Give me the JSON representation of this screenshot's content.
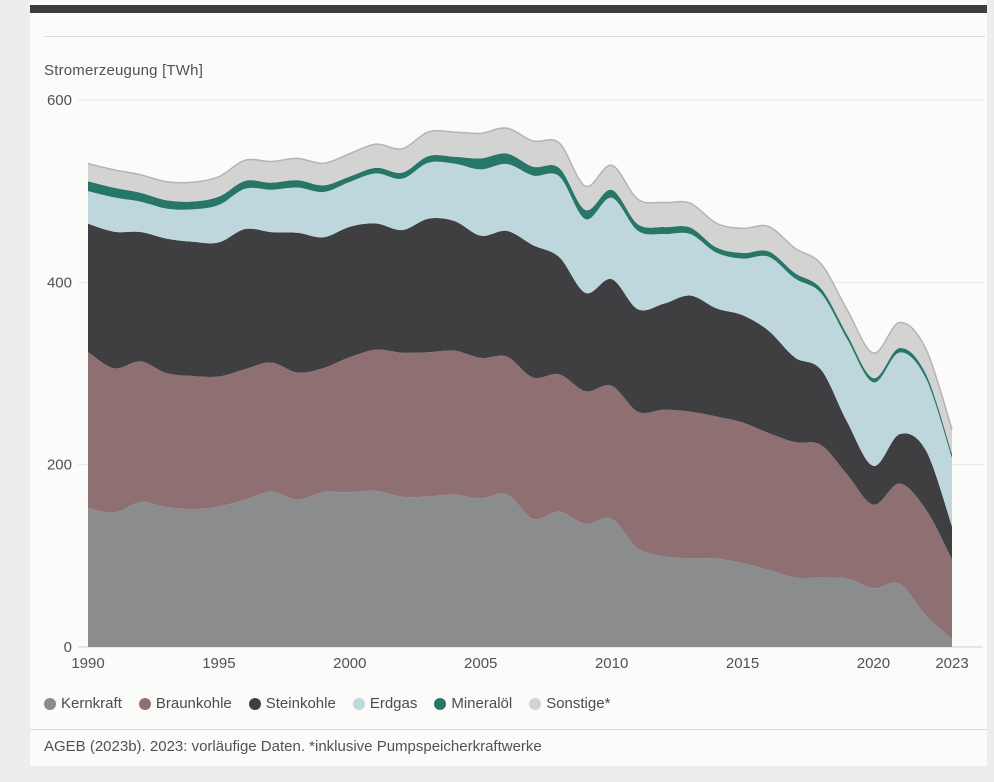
{
  "chart": {
    "y_axis_title": "Stromerzeugung [TWh]"
  },
  "chart_data": {
    "type": "area",
    "stacked": true,
    "title": "Stromerzeugung [TWh]",
    "ylabel": "TWh",
    "xlabel": "",
    "ylim": [
      0,
      600
    ],
    "yticks": [
      0,
      200,
      400,
      600
    ],
    "xticks": [
      1990,
      1995,
      2000,
      2005,
      2010,
      2015,
      2020,
      2023
    ],
    "grid": "horizontal",
    "legend_position": "bottom",
    "x": [
      1990,
      1991,
      1992,
      1993,
      1994,
      1995,
      1996,
      1997,
      1998,
      1999,
      2000,
      2001,
      2002,
      2003,
      2004,
      2005,
      2006,
      2007,
      2008,
      2009,
      2010,
      2011,
      2012,
      2013,
      2014,
      2015,
      2016,
      2017,
      2018,
      2019,
      2020,
      2021,
      2022,
      2023
    ],
    "series": [
      {
        "key": "kernkraft",
        "name": "Kernkraft",
        "color": "#8b8c8e",
        "values": [
          152.5,
          147.4,
          158.8,
          153.5,
          151.2,
          154.1,
          161.6,
          170.3,
          161.6,
          170.0,
          169.6,
          171.3,
          164.8,
          165.1,
          167.1,
          163.0,
          167.4,
          140.5,
          148.5,
          134.9,
          140.6,
          108.0,
          99.5,
          97.3,
          97.1,
          91.8,
          84.6,
          76.3,
          76.0,
          75.1,
          64.4,
          69.1,
          34.7,
          8.8
        ]
      },
      {
        "key": "braunkohle",
        "name": "Braunkohle",
        "color": "#8e7072",
        "values": [
          170.9,
          158.3,
          154.5,
          146.9,
          146.1,
          142.6,
          143.2,
          141.7,
          139.4,
          136.0,
          148.3,
          154.8,
          158.0,
          158.2,
          158.0,
          154.1,
          151.1,
          155.1,
          150.6,
          145.6,
          145.9,
          150.1,
          160.7,
          160.9,
          155.8,
          154.5,
          150.0,
          148.4,
          145.5,
          114.0,
          91.7,
          110.1,
          116.2,
          87.4
        ]
      },
      {
        "key": "steinkohle",
        "name": "Steinkohle",
        "color": "#3f3f42",
        "values": [
          140.8,
          149.8,
          141.9,
          147.6,
          147.2,
          147.1,
          153.7,
          143.1,
          153.4,
          143.5,
          143.1,
          138.4,
          134.6,
          146.5,
          142.1,
          134.1,
          137.9,
          145.1,
          128.5,
          107.9,
          117.0,
          112.4,
          116.4,
          127.3,
          118.6,
          117.7,
          112.2,
          92.9,
          82.6,
          57.5,
          42.5,
          54.3,
          64.9,
          36.1
        ]
      },
      {
        "key": "erdgas",
        "name": "Erdgas",
        "color": "#bed7dd",
        "values": [
          35.9,
          37.7,
          33.3,
          32.9,
          35.5,
          41.1,
          44.2,
          46.5,
          49.6,
          49.6,
          49.2,
          55.0,
          56.3,
          61.4,
          63.0,
          72.7,
          73.4,
          76.4,
          88.6,
          80.9,
          89.3,
          86.1,
          76.4,
          67.5,
          61.1,
          62.0,
          81.3,
          86.7,
          83.9,
          91.0,
          91.6,
          89.6,
          79.0,
          75.2
        ]
      },
      {
        "key": "mineraloel",
        "name": "Mineralöl",
        "color": "#277668",
        "values": [
          10.8,
          10.5,
          9.8,
          9.1,
          8.7,
          9.1,
          8.6,
          7.8,
          8.1,
          7.3,
          5.9,
          6.2,
          6.7,
          7.3,
          7.5,
          12.0,
          11.5,
          9.7,
          9.2,
          10.1,
          8.7,
          7.2,
          7.6,
          7.2,
          5.7,
          6.2,
          5.8,
          5.9,
          5.2,
          4.8,
          4.7,
          4.8,
          4.9,
          4.6
        ]
      },
      {
        "key": "sonstige",
        "name": "Sonstige*",
        "color": "#d3d3d1",
        "values": [
          19.3,
          19.7,
          19.8,
          20.3,
          21.1,
          21.9,
          22.6,
          23.1,
          23.9,
          24.2,
          25.1,
          25.9,
          26.2,
          26.5,
          27.1,
          27.5,
          27.8,
          28.2,
          27.4,
          26.0,
          26.9,
          27.4,
          27.0,
          26.6,
          26.5,
          27.0,
          27.3,
          27.2,
          27.1,
          27.3,
          27.5,
          28.0,
          27.5,
          26.5
        ]
      }
    ],
    "colors": {
      "grid": "#e6e6e4",
      "zero_line": "#cfcfcd",
      "stack_outline": "#b4b4b2",
      "tick_text": "#515254"
    }
  },
  "footer": {
    "source": "AGEB (2023b). 2023: vorläufige Daten. *inklusive Pumpspeicherkraftwerke"
  }
}
